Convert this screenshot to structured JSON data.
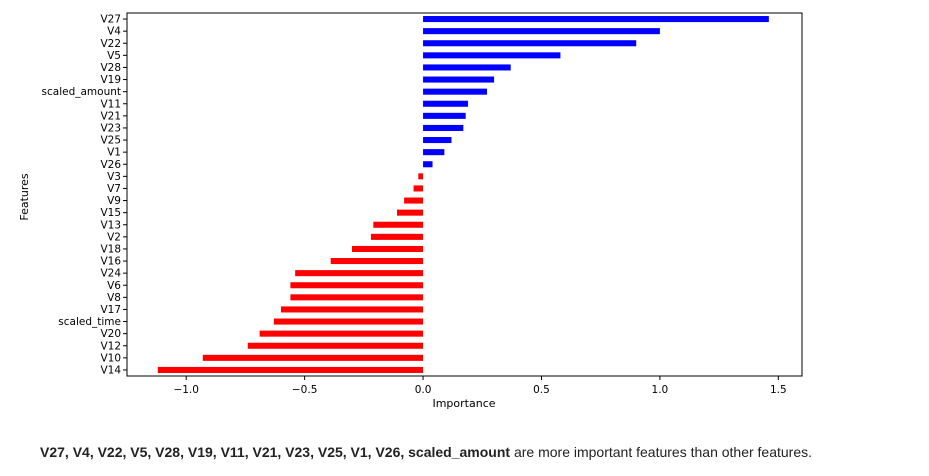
{
  "chart_data": {
    "type": "bar",
    "orientation": "horizontal",
    "title": "",
    "xlabel": "Importance",
    "ylabel": "Features",
    "xlim": [
      -1.25,
      1.6
    ],
    "xticks": [
      -1.0,
      -0.5,
      0.0,
      0.5,
      1.0,
      1.5
    ],
    "xtick_labels": [
      "−1.0",
      "−0.5",
      "0.0",
      "0.5",
      "1.0",
      "1.5"
    ],
    "grid": false,
    "legend": "none",
    "categories": [
      "V27",
      "V4",
      "V22",
      "V5",
      "V28",
      "V19",
      "scaled_amount",
      "V11",
      "V21",
      "V23",
      "V25",
      "V1",
      "V26",
      "V3",
      "V7",
      "V9",
      "V15",
      "V13",
      "V2",
      "V18",
      "V16",
      "V24",
      "V6",
      "V8",
      "V17",
      "scaled_time",
      "V20",
      "V12",
      "V10",
      "V14"
    ],
    "values": [
      1.46,
      1.0,
      0.9,
      0.58,
      0.37,
      0.3,
      0.27,
      0.19,
      0.18,
      0.17,
      0.12,
      0.09,
      0.04,
      -0.02,
      -0.04,
      -0.08,
      -0.11,
      -0.21,
      -0.22,
      -0.3,
      -0.39,
      -0.54,
      -0.56,
      -0.56,
      -0.6,
      -0.63,
      -0.69,
      -0.74,
      -0.93,
      -1.12
    ],
    "colors": {
      "positive": "#0000ff",
      "negative": "#ff0000"
    }
  },
  "caption": {
    "bold": "V27, V4, V22, V5, V28, V19, V11, V21, V23, V25, V1, V26, scaled_amount",
    "rest": " are more important features than other features."
  }
}
